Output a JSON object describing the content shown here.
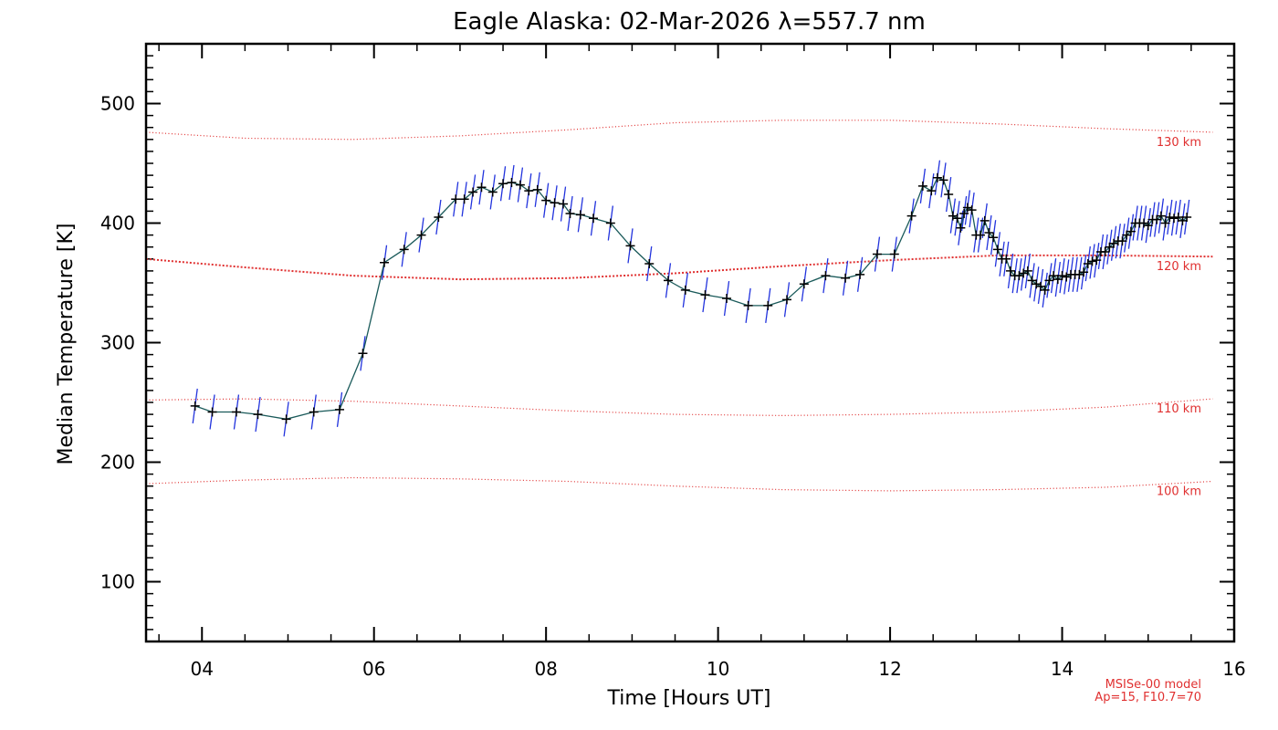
{
  "chart_data": {
    "type": "line",
    "title": "Eagle Alaska: 02-Mar-2026 λ=557.7 nm",
    "xlabel": "Time [Hours UT]",
    "ylabel": "Median Temperature [K]",
    "xlim": [
      3.35,
      16.0
    ],
    "ylim": [
      50,
      550
    ],
    "x_tick_values": [
      4,
      6,
      8,
      10,
      12,
      14,
      16
    ],
    "x_tick_labels": [
      "04",
      "06",
      "08",
      "10",
      "12",
      "14",
      "16"
    ],
    "y_tick_values": [
      100,
      200,
      300,
      400,
      500
    ],
    "y_tick_labels": [
      "100",
      "200",
      "300",
      "400",
      "500"
    ],
    "grid": false,
    "colors": {
      "errorbar": "#2233dd",
      "line": "#1a5a5a",
      "marker": "#000000",
      "model": "#e03030"
    },
    "series": [
      {
        "name": "Median Temperature",
        "x": [
          3.92,
          4.12,
          4.4,
          4.65,
          4.98,
          5.3,
          5.6,
          5.87,
          6.12,
          6.35,
          6.55,
          6.75,
          6.95,
          7.05,
          7.15,
          7.25,
          7.38,
          7.5,
          7.6,
          7.7,
          7.8,
          7.9,
          8.0,
          8.1,
          8.2,
          8.28,
          8.4,
          8.55,
          8.75,
          8.98,
          9.2,
          9.42,
          9.62,
          9.85,
          10.1,
          10.35,
          10.58,
          10.8,
          11.0,
          11.25,
          11.48,
          11.65,
          11.85,
          12.05,
          12.25,
          12.38,
          12.48,
          12.55,
          12.62,
          12.68,
          12.73,
          12.78,
          12.82,
          12.86,
          12.9,
          12.95,
          13.0,
          13.05,
          13.1,
          13.15,
          13.2,
          13.25,
          13.3,
          13.35,
          13.4,
          13.45,
          13.5,
          13.55,
          13.6,
          13.65,
          13.7,
          13.75,
          13.8,
          13.85,
          13.9,
          13.95,
          14.0,
          14.05,
          14.1,
          14.15,
          14.2,
          14.25,
          14.3,
          14.35,
          14.4,
          14.45,
          14.5,
          14.55,
          14.6,
          14.65,
          14.7,
          14.75,
          14.8,
          14.85,
          14.9,
          14.95,
          15.0,
          15.05,
          15.1,
          15.15,
          15.2,
          15.25,
          15.3,
          15.35,
          15.4,
          15.45
        ],
        "y": [
          247,
          242,
          242,
          240,
          236,
          242,
          244,
          291,
          367,
          378,
          390,
          405,
          420,
          420,
          426,
          430,
          426,
          433,
          434,
          432,
          427,
          428,
          419,
          417,
          416,
          408,
          407,
          404,
          400,
          381,
          366,
          352,
          344,
          340,
          337,
          331,
          331,
          336,
          349,
          356,
          354,
          357,
          374,
          374,
          406,
          431,
          427,
          438,
          436,
          424,
          406,
          404,
          396,
          408,
          413,
          411,
          390,
          390,
          402,
          392,
          388,
          378,
          370,
          370,
          360,
          356,
          356,
          358,
          360,
          352,
          349,
          347,
          344,
          352,
          356,
          353,
          356,
          355,
          357,
          357,
          357,
          359,
          366,
          368,
          369,
          376,
          376,
          380,
          383,
          385,
          385,
          390,
          393,
          400,
          400,
          400,
          398,
          403,
          403,
          406,
          400,
          405,
          404,
          405,
          402,
          405
        ]
      }
    ],
    "model_series": [
      {
        "name": "130 km",
        "label": "130 km",
        "emphasis": false,
        "x": [
          3.35,
          4.5,
          5.75,
          7.0,
          8.25,
          9.5,
          10.75,
          12.0,
          13.25,
          14.5,
          15.75
        ],
        "y": [
          476,
          471,
          470,
          473,
          478,
          484,
          486,
          486,
          483,
          479,
          476
        ]
      },
      {
        "name": "120 km",
        "label": "120 km",
        "emphasis": true,
        "x": [
          3.35,
          4.5,
          5.75,
          7.0,
          8.25,
          9.5,
          10.75,
          12.0,
          13.25,
          14.5,
          15.75
        ],
        "y": [
          370,
          363,
          356,
          353,
          354,
          358,
          364,
          369,
          373,
          373,
          372
        ]
      },
      {
        "name": "110 km",
        "label": "110 km",
        "emphasis": false,
        "x": [
          3.35,
          4.5,
          5.75,
          7.0,
          8.25,
          9.5,
          10.75,
          12.0,
          13.25,
          14.5,
          15.75
        ],
        "y": [
          252,
          253,
          251,
          247,
          243,
          240,
          239,
          240,
          242,
          246,
          253
        ]
      },
      {
        "name": "100 km",
        "label": "100 km",
        "emphasis": false,
        "x": [
          3.35,
          4.5,
          5.75,
          7.0,
          8.25,
          9.5,
          10.75,
          12.0,
          13.25,
          14.5,
          15.75
        ],
        "y": [
          182,
          185,
          187,
          186,
          184,
          180,
          177,
          176,
          177,
          179,
          184
        ]
      }
    ],
    "annotations": [
      "MSISe-00 model",
      "Ap=15, F10.7=70"
    ]
  }
}
